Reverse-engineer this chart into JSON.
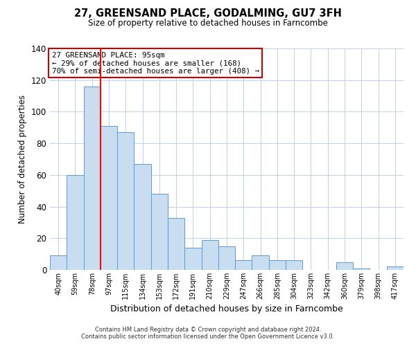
{
  "title": "27, GREENSAND PLACE, GODALMING, GU7 3FH",
  "subtitle": "Size of property relative to detached houses in Farncombe",
  "xlabel": "Distribution of detached houses by size in Farncombe",
  "ylabel": "Number of detached properties",
  "bar_labels": [
    "40sqm",
    "59sqm",
    "78sqm",
    "97sqm",
    "115sqm",
    "134sqm",
    "153sqm",
    "172sqm",
    "191sqm",
    "210sqm",
    "229sqm",
    "247sqm",
    "266sqm",
    "285sqm",
    "304sqm",
    "323sqm",
    "342sqm",
    "360sqm",
    "379sqm",
    "398sqm",
    "417sqm"
  ],
  "bar_values": [
    9,
    60,
    116,
    91,
    87,
    67,
    48,
    33,
    14,
    19,
    15,
    6,
    9,
    6,
    6,
    0,
    0,
    5,
    1,
    0,
    2
  ],
  "bar_color": "#c9ddf0",
  "bar_edge_color": "#5b9bd5",
  "ylim": [
    0,
    140
  ],
  "yticks": [
    0,
    20,
    40,
    60,
    80,
    100,
    120,
    140
  ],
  "red_line_x": 2.5,
  "annotation_title": "27 GREENSAND PLACE: 95sqm",
  "annotation_line1": "← 29% of detached houses are smaller (168)",
  "annotation_line2": "70% of semi-detached houses are larger (408) →",
  "annotation_box_color": "#ffffff",
  "annotation_box_edge_color": "#cc0000",
  "footer1": "Contains HM Land Registry data © Crown copyright and database right 2024.",
  "footer2": "Contains public sector information licensed under the Open Government Licence v3.0.",
  "background_color": "#ffffff",
  "grid_color": "#c0d0e8"
}
